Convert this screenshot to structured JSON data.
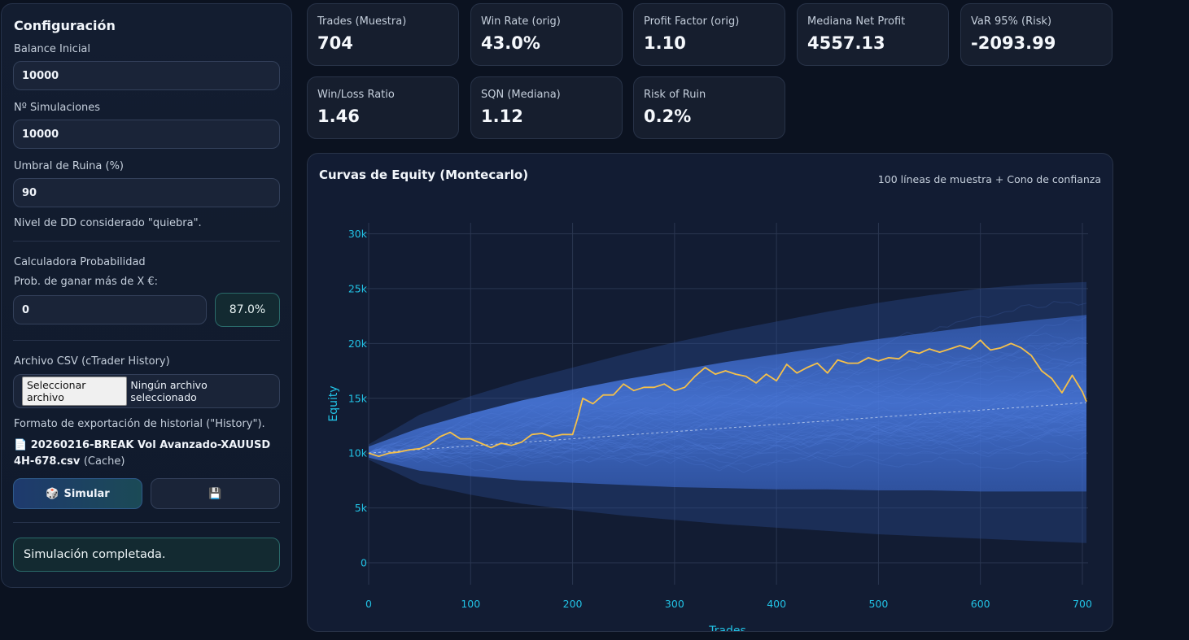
{
  "sidebar": {
    "title": "Configuración",
    "balance_label": "Balance Inicial",
    "balance_value": "10000",
    "sims_label": "Nº Simulaciones",
    "sims_value": "10000",
    "ruin_label": "Umbral de Ruina (%)",
    "ruin_value": "90",
    "ruin_hint": "Nivel de DD considerado \"quiebra\".",
    "calc_title": "Calculadora Probabilidad",
    "calc_label": "Prob. de ganar más de X €:",
    "calc_value": "0",
    "calc_result": "87.0%",
    "csv_label": "Archivo CSV (cTrader History)",
    "file_button": "Seleccionar archivo",
    "file_status": "Ningún archivo seleccionado",
    "format_hint": "Formato de exportación de historial (\"History\").",
    "file_icon": "📄",
    "file_name": "20260216-BREAK Vol Avanzado-XAUUSD 4H-678.csv",
    "file_cache": "(Cache)",
    "simulate_icon": "🎲",
    "simulate_label": "Simular",
    "save_icon": "💾",
    "status_text": "Simulación completada."
  },
  "metrics": [
    {
      "label": "Trades (Muestra)",
      "value": "704"
    },
    {
      "label": "Win Rate (orig)",
      "value": "43.0%"
    },
    {
      "label": "Profit Factor (orig)",
      "value": "1.10"
    },
    {
      "label": "Mediana Net Profit",
      "value": "4557.13"
    },
    {
      "label": "VaR 95% (Risk)",
      "value": "-2093.99"
    },
    {
      "label": "Win/Loss Ratio",
      "value": "1.46"
    },
    {
      "label": "SQN (Mediana)",
      "value": "1.12"
    },
    {
      "label": "Risk of Ruin",
      "value": "0.2%"
    }
  ],
  "chart": {
    "title": "Curvas de Equity (Montecarlo)",
    "subtitle": "100 líneas de muestra + Cono de confianza"
  },
  "colors": {
    "accent_cyan": "#22c3e6",
    "cone_blue": "#3f6fd8",
    "equity_line": "#f5c04a"
  },
  "chart_data": {
    "type": "line",
    "title": "Curvas de Equity (Montecarlo)",
    "xlabel": "Trades",
    "ylabel": "Equity",
    "xlim": [
      0,
      704
    ],
    "ylim": [
      -2000,
      31000
    ],
    "x_ticks": [
      0,
      100,
      200,
      300,
      400,
      500,
      600,
      700
    ],
    "y_ticks": [
      0,
      5000,
      10000,
      15000,
      20000,
      25000,
      30000
    ],
    "y_tick_labels": [
      "0",
      "5k",
      "10k",
      "15k",
      "20k",
      "25k",
      "30k"
    ],
    "grid": true,
    "series": [
      {
        "name": "",
        "x": [
          0,
          10,
          20,
          30,
          40,
          50,
          60,
          70,
          80,
          90,
          100,
          110,
          120,
          130,
          140,
          150,
          160,
          170,
          180,
          190,
          200,
          205,
          210,
          220,
          230,
          240,
          250,
          260,
          270,
          280,
          290,
          300,
          310,
          320,
          330,
          340,
          350,
          360,
          370,
          380,
          390,
          400,
          410,
          420,
          430,
          440,
          450,
          460,
          470,
          480,
          490,
          500,
          510,
          520,
          530,
          540,
          550,
          560,
          570,
          580,
          590,
          600,
          605,
          610,
          620,
          630,
          640,
          650,
          660,
          670,
          680,
          690,
          700,
          704
        ],
        "y": [
          10000,
          9700,
          10000,
          10100,
          10300,
          10400,
          10800,
          11500,
          11900,
          11300,
          11300,
          10900,
          10500,
          10900,
          10700,
          11000,
          11700,
          11800,
          11500,
          11700,
          11700,
          13200,
          15000,
          14500,
          15300,
          15300,
          16300,
          15700,
          16000,
          16000,
          16300,
          15700,
          16000,
          17000,
          17800,
          17200,
          17500,
          17200,
          17000,
          16400,
          17200,
          16600,
          18100,
          17300,
          17800,
          18200,
          17300,
          18500,
          18200,
          18200,
          18700,
          18400,
          18700,
          18600,
          19300,
          19100,
          19500,
          19200,
          19500,
          19800,
          19500,
          20300,
          19800,
          19400,
          19600,
          20000,
          19600,
          18900,
          17500,
          16800,
          15500,
          17100,
          15600,
          14700
        ]
      },
      {
        "name": "",
        "x": [
          0,
          704
        ],
        "y": [
          10000,
          14600
        ]
      }
    ],
    "cone": {
      "x": [
        0,
        50,
        100,
        150,
        200,
        250,
        300,
        350,
        400,
        450,
        500,
        550,
        600,
        650,
        704
      ],
      "upper": [
        10600,
        12300,
        13600,
        14800,
        15800,
        16700,
        17500,
        18300,
        19000,
        19700,
        20400,
        21000,
        21600,
        22100,
        22600
      ],
      "lower": [
        9600,
        8400,
        7900,
        7500,
        7300,
        7100,
        6900,
        6800,
        6700,
        6700,
        6600,
        6600,
        6500,
        6500,
        6500
      ],
      "outer_upper": [
        10800,
        13500,
        15200,
        16600,
        17800,
        19000,
        20100,
        21100,
        22000,
        22900,
        23700,
        24400,
        25000,
        25400,
        25600
      ],
      "outer_lower": [
        9400,
        7200,
        6200,
        5400,
        4800,
        4300,
        3900,
        3500,
        3200,
        2900,
        2600,
        2400,
        2200,
        2000,
        1800
      ]
    }
  }
}
